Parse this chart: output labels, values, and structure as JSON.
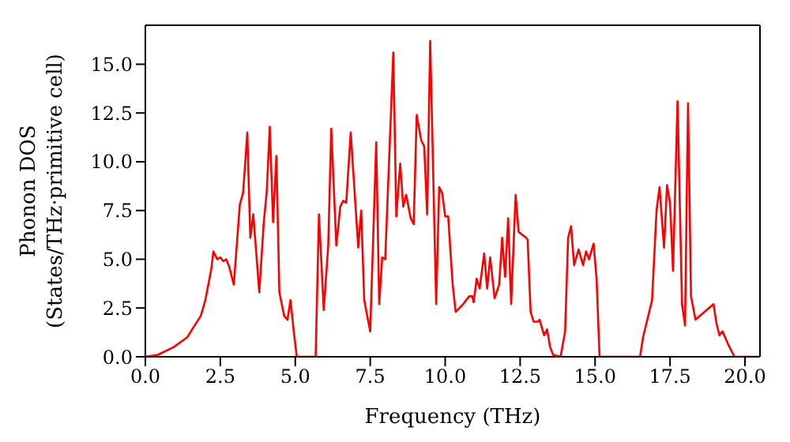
{
  "chart_data": {
    "type": "line",
    "xlabel": "Frequency (THz)",
    "ylabel": "Phonon DOS\n(States/THz·primitive cell)",
    "x": [
      0,
      0.42,
      0.95,
      1.4,
      1.6,
      1.85,
      2.0,
      2.2,
      2.27,
      2.4,
      2.5,
      2.6,
      2.7,
      2.8,
      2.95,
      3.15,
      3.26,
      3.4,
      3.5,
      3.6,
      3.8,
      3.95,
      4.05,
      4.15,
      4.26,
      4.37,
      4.47,
      4.63,
      4.74,
      4.84,
      4.95,
      5.05,
      5.68,
      5.79,
      5.95,
      6.1,
      6.2,
      6.37,
      6.5,
      6.6,
      6.7,
      6.85,
      7.1,
      7.2,
      7.3,
      7.5,
      7.7,
      7.8,
      7.9,
      8.0,
      8.27,
      8.37,
      8.5,
      8.6,
      8.7,
      8.85,
      8.95,
      9.05,
      9.2,
      9.3,
      9.4,
      9.5,
      9.7,
      9.8,
      9.9,
      10.0,
      10.1,
      10.25,
      10.35,
      10.6,
      10.8,
      10.9,
      10.95,
      11.05,
      11.15,
      11.3,
      11.4,
      11.5,
      11.65,
      11.8,
      11.9,
      12.0,
      12.1,
      12.2,
      12.35,
      12.45,
      12.7,
      12.75,
      12.85,
      12.95,
      13.1,
      13.15,
      13.3,
      13.4,
      13.5,
      13.6,
      13.85,
      14.0,
      14.1,
      14.2,
      14.3,
      14.45,
      14.6,
      14.7,
      14.8,
      14.95,
      15.05,
      15.15,
      16.5,
      16.6,
      16.9,
      17.05,
      17.15,
      17.3,
      17.4,
      17.5,
      17.6,
      17.75,
      17.9,
      18.0,
      18.1,
      18.2,
      18.35,
      18.95,
      19.05,
      19.15,
      19.25,
      19.45,
      19.65,
      20.5
    ],
    "series": [
      {
        "color": "#ff0000",
        "values": [
          0,
          0.1,
          0.5,
          1.0,
          1.5,
          2.1,
          2.9,
          4.5,
          5.4,
          5.0,
          5.1,
          4.9,
          5.0,
          4.6,
          3.7,
          7.8,
          8.4,
          11.5,
          6.1,
          7.3,
          3.3,
          6.9,
          8.5,
          11.8,
          6.9,
          10.3,
          3.3,
          2.1,
          1.9,
          2.9,
          1.3,
          0,
          0,
          7.3,
          2.4,
          5.7,
          11.7,
          5.7,
          7.7,
          8.0,
          7.9,
          11.5,
          5.6,
          7.5,
          2.9,
          1.3,
          11.0,
          2.7,
          5.1,
          5.0,
          15.6,
          7.2,
          9.9,
          7.7,
          8.3,
          7.1,
          6.8,
          12.4,
          11.1,
          10.8,
          7.3,
          16.2,
          2.7,
          8.7,
          8.4,
          7.2,
          7.2,
          3.7,
          2.3,
          2.7,
          3.1,
          3.1,
          2.8,
          4.0,
          3.5,
          5.3,
          3.5,
          5.1,
          3.0,
          3.7,
          6.1,
          4.1,
          7.1,
          2.7,
          8.3,
          6.4,
          6.1,
          6.0,
          2.3,
          1.8,
          1.8,
          1.9,
          1.1,
          1.4,
          0.5,
          0.1,
          0,
          1.3,
          6.1,
          6.7,
          4.7,
          5.5,
          4.7,
          5.4,
          5.0,
          5.8,
          4.0,
          0,
          0,
          1.0,
          2.9,
          7.5,
          8.7,
          5.6,
          8.8,
          7.9,
          4.4,
          13.1,
          2.7,
          1.6,
          13.0,
          3.1,
          1.9,
          2.7,
          1.7,
          1.1,
          1.3,
          0.6,
          0,
          0
        ]
      }
    ],
    "xlim": [
      0,
      20.5
    ],
    "ylim": [
      0,
      17
    ],
    "xticks": [
      {
        "value": 0,
        "label": "0.0"
      },
      {
        "value": 2.5,
        "label": "2.5"
      },
      {
        "value": 5,
        "label": "5.0"
      },
      {
        "value": 7.5,
        "label": "7.5"
      },
      {
        "value": 10,
        "label": "10.0"
      },
      {
        "value": 12.5,
        "label": "12.5"
      },
      {
        "value": 15,
        "label": "15.0"
      },
      {
        "value": 17.5,
        "label": "17.5"
      },
      {
        "value": 20,
        "label": "20.0"
      }
    ],
    "yticks": [
      {
        "value": 0,
        "label": "0.0"
      },
      {
        "value": 2.5,
        "label": "2.5"
      },
      {
        "value": 5,
        "label": "5.0"
      },
      {
        "value": 7.5,
        "label": "7.5"
      },
      {
        "value": 10,
        "label": "10.0"
      },
      {
        "value": 12.5,
        "label": "12.5"
      },
      {
        "value": 15,
        "label": "15.0"
      }
    ],
    "grid": false,
    "legend": false,
    "marker": "none",
    "line_style": "solid"
  }
}
